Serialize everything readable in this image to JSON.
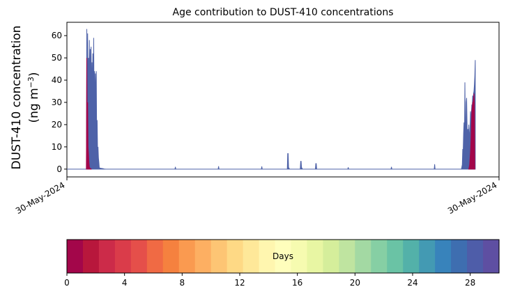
{
  "chart_data": {
    "type": "area",
    "title": "Age contribution to DUST-410 concentrations",
    "ylabel_line1": "DUST-410 concentration",
    "ylabel_line2_prefix": "(ng m",
    "ylabel_line2_sup": "−3",
    "ylabel_line2_suffix": ")",
    "ylim": [
      -3.5,
      66
    ],
    "yticks": [
      0,
      10,
      20,
      30,
      40,
      50,
      60
    ],
    "xtick_labels": [
      "30-May-2024",
      "30-May-2024"
    ],
    "grid": false,
    "series_total": {
      "color": "#4e62a8",
      "x": [
        0.0,
        0.045,
        0.046,
        0.047,
        0.048,
        0.049,
        0.05,
        0.051,
        0.052,
        0.053,
        0.054,
        0.055,
        0.056,
        0.057,
        0.058,
        0.059,
        0.06,
        0.061,
        0.062,
        0.063,
        0.064,
        0.065,
        0.066,
        0.067,
        0.068,
        0.069,
        0.07,
        0.071,
        0.072,
        0.073,
        0.074,
        0.075,
        0.076,
        0.077,
        0.078,
        0.079,
        0.08,
        0.081,
        0.082,
        0.083,
        0.084,
        0.085,
        0.09,
        0.1,
        0.25,
        0.251,
        0.252,
        0.35,
        0.351,
        0.352,
        0.45,
        0.451,
        0.452,
        0.51,
        0.511,
        0.512,
        0.513,
        0.514,
        0.515,
        0.54,
        0.541,
        0.542,
        0.543,
        0.544,
        0.545,
        0.575,
        0.576,
        0.577,
        0.578,
        0.65,
        0.651,
        0.652,
        0.75,
        0.751,
        0.752,
        0.85,
        0.851,
        0.852,
        0.913,
        0.914,
        0.915,
        0.916,
        0.917,
        0.918,
        0.919,
        0.92,
        0.921,
        0.922,
        0.923,
        0.924,
        0.925,
        0.926,
        0.927,
        0.928,
        0.929,
        0.93,
        0.931,
        0.932,
        0.933,
        0.934,
        0.935,
        0.936,
        0.937,
        0.938,
        0.939,
        0.94,
        0.941,
        0.942,
        0.943,
        0.944,
        0.945,
        0.946,
        0.947,
        0.948,
        0.949,
        0.95,
        0.951,
        0.952,
        0.953,
        1.0
      ],
      "y": [
        0,
        0,
        63,
        35,
        61,
        20,
        50,
        32,
        58,
        28,
        54,
        30,
        55,
        22,
        48,
        26,
        52,
        30,
        59,
        24,
        44,
        20,
        43,
        25,
        44,
        12,
        22,
        8,
        10,
        5,
        3,
        0.5,
        0.3,
        0.5,
        0.3,
        0.4,
        0.3,
        0.2,
        0.3,
        0.2,
        0.2,
        0.1,
        0,
        0,
        0,
        1,
        0,
        0,
        1.3,
        0,
        0,
        1.2,
        0,
        0,
        7,
        7,
        0.5,
        0.5,
        0,
        0,
        3.5,
        3.5,
        0.5,
        0.5,
        0,
        0,
        2.5,
        2.5,
        0,
        0,
        0.8,
        0,
        0,
        1.0,
        0,
        0,
        2.2,
        0,
        0,
        1,
        2,
        9,
        8,
        16,
        21,
        14,
        39,
        18,
        13,
        30,
        32,
        20,
        12,
        18,
        10,
        20,
        16,
        13,
        19,
        26,
        22,
        25,
        29,
        28,
        33,
        30,
        34,
        35,
        38,
        42,
        49,
        30,
        0,
        0,
        0,
        0,
        0,
        0,
        0,
        0
      ],
      "x_end_at": 0.945
    },
    "series_oldest": {
      "color": "#a3064a",
      "x": [
        0.045,
        0.046,
        0.047,
        0.048,
        0.049,
        0.05,
        0.051,
        0.052,
        0.053,
        0.055,
        0.057,
        0.93,
        0.932,
        0.933,
        0.934,
        0.935,
        0.936,
        0.937,
        0.938,
        0.939,
        0.94,
        0.941,
        0.942,
        0.943,
        0.944
      ],
      "y": [
        0,
        50,
        22,
        30,
        10,
        7,
        3,
        1,
        0.5,
        0.2,
        0,
        0,
        2,
        5,
        8,
        13,
        20,
        26,
        28,
        30,
        30,
        32,
        34,
        30,
        0
      ]
    },
    "colorbar": {
      "label": "Days",
      "range": [
        0,
        30
      ],
      "ticks": [
        0,
        4,
        8,
        12,
        16,
        20,
        24,
        28
      ],
      "colors": [
        "#a3064a",
        "#b8173c",
        "#cc2b49",
        "#da3c4a",
        "#e54f4a",
        "#f06a44",
        "#f5813f",
        "#fa9a50",
        "#fdaf62",
        "#fdc574",
        "#fed985",
        "#fee899",
        "#fff6af",
        "#fffebc",
        "#f6fbb0",
        "#e8f6a3",
        "#d5ee9b",
        "#bfe4a0",
        "#a3d9a3",
        "#86cfa4",
        "#6ac3a5",
        "#53b1a9",
        "#439ab3",
        "#3883bb",
        "#3e6eb0",
        "#4e5da9",
        "#5e4fa2"
      ]
    }
  }
}
